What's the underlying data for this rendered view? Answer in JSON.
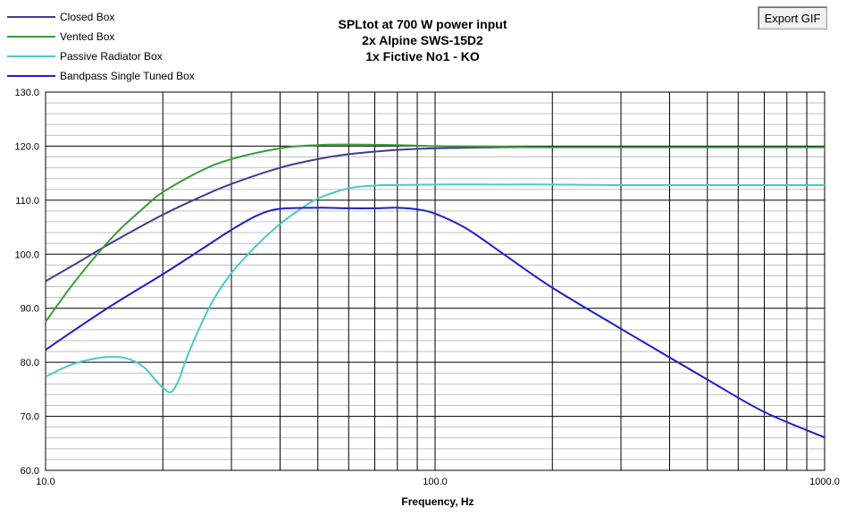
{
  "toolbar": {
    "export_label": "Export GIF"
  },
  "colors": {
    "background": "#ffffff",
    "grid_major": "#000000",
    "grid_minor": "#c0c0c0"
  },
  "chart_data": {
    "type": "line",
    "title_lines": [
      "SPLtot at 700 W power input",
      "2x Alpine  SWS-15D2",
      "1x Fictive No1 - KO"
    ],
    "xlabel": "Frequency,  Hz",
    "ylabel": "",
    "x_scale": "log",
    "xlim": [
      10,
      1000
    ],
    "ylim": [
      60,
      130
    ],
    "x_ticks": [
      {
        "value": 10,
        "label": "10.0"
      },
      {
        "value": 100,
        "label": "100.0"
      },
      {
        "value": 1000,
        "label": "1000.0"
      }
    ],
    "y_ticks": [
      {
        "value": 60,
        "label": "60.0"
      },
      {
        "value": 70,
        "label": "70.0"
      },
      {
        "value": 80,
        "label": "80.0"
      },
      {
        "value": 90,
        "label": "90.0"
      },
      {
        "value": 100,
        "label": "100.0"
      },
      {
        "value": 110,
        "label": "110.0"
      },
      {
        "value": 120,
        "label": "120.0"
      },
      {
        "value": 130,
        "label": "130.0"
      }
    ],
    "grid": true,
    "legend_position": "top-left",
    "series": [
      {
        "name": "Closed Box",
        "color": "#3d3d8f",
        "x": [
          10,
          12,
          15,
          20,
          25,
          30,
          40,
          50,
          60,
          80,
          100,
          150,
          200,
          300,
          500,
          1000
        ],
        "y": [
          95.0,
          98.3,
          102.4,
          107.3,
          110.6,
          113.0,
          116.0,
          117.6,
          118.5,
          119.3,
          119.6,
          119.8,
          119.8,
          119.8,
          119.8,
          119.8
        ]
      },
      {
        "name": "Vented Box",
        "color": "#3a9a3a",
        "x": [
          10,
          12,
          15,
          18,
          20,
          25,
          30,
          40,
          50,
          60,
          80,
          100,
          150,
          200,
          300,
          500,
          1000
        ],
        "y": [
          87.5,
          95.3,
          103.5,
          108.8,
          111.5,
          115.4,
          117.6,
          119.6,
          120.2,
          120.3,
          120.2,
          120.0,
          119.9,
          119.8,
          119.8,
          119.8,
          119.8
        ]
      },
      {
        "name": "Passive Radiator Box",
        "color": "#4cc8c8",
        "x": [
          10,
          11,
          12,
          13,
          14,
          15,
          16,
          17,
          18,
          19,
          20,
          21,
          22,
          23,
          25,
          27,
          30,
          35,
          40,
          45,
          50,
          60,
          70,
          80,
          100,
          150,
          200,
          300,
          500,
          1000
        ],
        "y": [
          77.3,
          78.8,
          79.9,
          80.5,
          80.9,
          81.0,
          80.8,
          80.1,
          78.9,
          77.0,
          75.3,
          74.5,
          76.8,
          80.7,
          86.8,
          91.6,
          96.5,
          101.8,
          105.6,
          108.3,
          110.3,
          112.2,
          112.7,
          112.8,
          112.9,
          112.9,
          112.9,
          112.8,
          112.8,
          112.8
        ]
      },
      {
        "name": "Bandpass Single Tuned Box",
        "color": "#1f1fc8",
        "x": [
          10,
          12,
          15,
          20,
          25,
          30,
          35,
          40,
          50,
          60,
          70,
          80,
          90,
          100,
          120,
          150,
          200,
          300,
          500,
          700,
          1000
        ],
        "y": [
          82.3,
          86.2,
          90.8,
          96.3,
          100.8,
          104.5,
          107.2,
          108.4,
          108.6,
          108.5,
          108.5,
          108.6,
          108.3,
          107.5,
          104.8,
          100.0,
          93.8,
          86.2,
          76.8,
          70.8,
          66.1
        ]
      }
    ]
  }
}
